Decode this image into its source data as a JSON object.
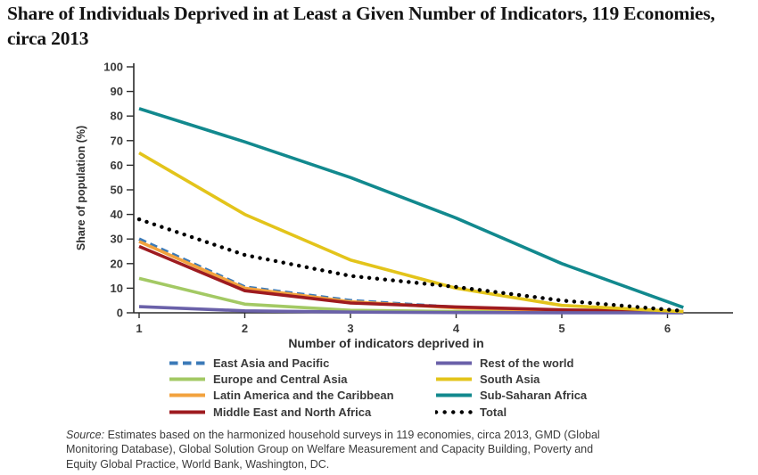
{
  "page": {
    "title": "Share of Individuals Deprived in at Least a Given Number of Indicators, 119 Economies, circa 2013",
    "source_label": "Source:",
    "source_text": " Estimates based on the harmonized household surveys in 119 economies, circa 2013, GMD (Global Monitoring Database), Global Solution Group on Welfare Measurement and Capacity Building, Poverty and Equity Global Practice, World Bank, Washington, DC."
  },
  "chart_data": {
    "type": "line",
    "title": "Share of Individuals Deprived in at Least a Given Number of Indicators, 119 Economies, circa 2013",
    "xlabel": "Number of indicators deprived in",
    "ylabel": "Share of population (%)",
    "x": [
      1,
      2,
      3,
      4,
      5,
      6
    ],
    "xlim": [
      1,
      6.2
    ],
    "ylim": [
      0,
      100
    ],
    "y_ticks": [
      0,
      10,
      20,
      30,
      40,
      50,
      60,
      70,
      80,
      90,
      100
    ],
    "grid": false,
    "legend_position": "bottom-two-columns",
    "series": [
      {
        "name": "East Asia and Pacific",
        "color": "#3B7AB8",
        "style": "dashed",
        "values": [
          30,
          10.5,
          5,
          2.2,
          0.8,
          0.3
        ]
      },
      {
        "name": "Europe and Central Asia",
        "color": "#A3C964",
        "style": "solid",
        "values": [
          14,
          3.5,
          1,
          0.5,
          0.2,
          0.1
        ]
      },
      {
        "name": "Latin America and the Caribbean",
        "color": "#F2A23E",
        "style": "solid",
        "values": [
          29,
          10,
          4.5,
          2,
          0.9,
          0.4
        ]
      },
      {
        "name": "Middle East and North Africa",
        "color": "#9E1B20",
        "style": "solid",
        "values": [
          27,
          9,
          4,
          2.4,
          1.2,
          0.6
        ]
      },
      {
        "name": "Rest of the world",
        "color": "#6A61A9",
        "style": "solid",
        "values": [
          2.5,
          0.8,
          0.3,
          0.1,
          0.05,
          0
        ]
      },
      {
        "name": "South Asia",
        "color": "#E3C41B",
        "style": "solid",
        "values": [
          65,
          40,
          21.5,
          10,
          3,
          0.8
        ]
      },
      {
        "name": "Sub-Saharan Africa",
        "color": "#12898E",
        "style": "solid",
        "values": [
          83,
          69.5,
          55,
          38.5,
          20,
          4.5
        ]
      },
      {
        "name": "Total",
        "color": "#000000",
        "style": "dotted",
        "values": [
          38,
          23.5,
          15,
          10.5,
          5,
          1.3
        ]
      }
    ]
  }
}
